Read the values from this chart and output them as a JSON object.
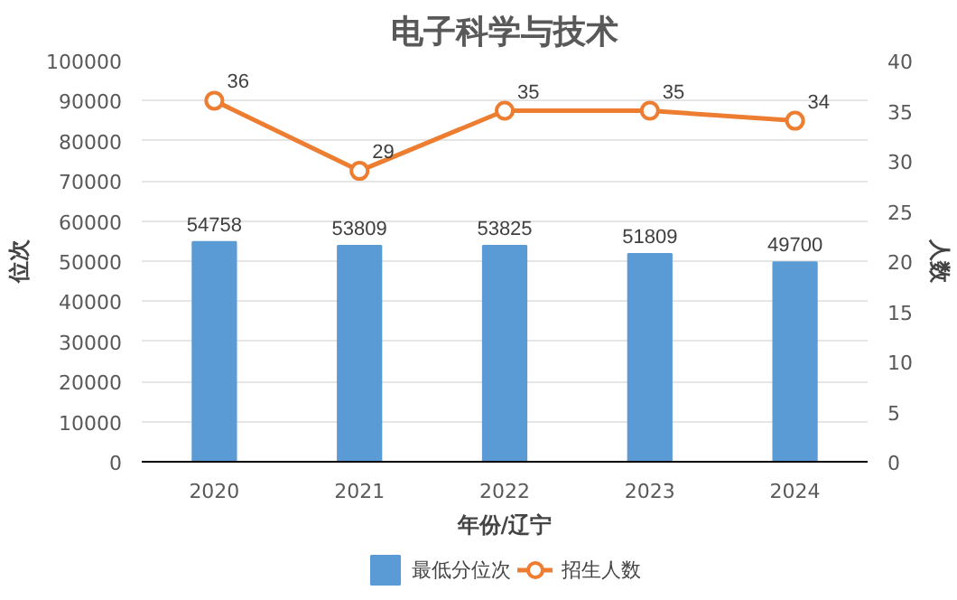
{
  "chart_data": {
    "type": "bar",
    "title": "电子科学与技术",
    "xlabel": "年份/辽宁",
    "ylabel": "位次",
    "y2label": "人数",
    "categories": [
      "2020",
      "2021",
      "2022",
      "2023",
      "2024"
    ],
    "series": [
      {
        "name": "最低分位次",
        "color": "#5b9bd5",
        "values": [
          54758,
          53809,
          53825,
          51809,
          49700
        ]
      },
      {
        "name": "招生人数",
        "type": "line",
        "axis": "y2",
        "color": "#ed7d31",
        "values": [
          36,
          29,
          35,
          35,
          34
        ]
      }
    ],
    "ylim": [
      0,
      100000
    ],
    "yticks": [
      0,
      10000,
      20000,
      30000,
      40000,
      50000,
      60000,
      70000,
      80000,
      90000,
      100000
    ],
    "y2lim": [
      0,
      40
    ],
    "y2ticks": [
      0,
      5,
      10,
      15,
      20,
      25,
      30,
      35,
      40
    ],
    "data_labels": true,
    "grid": "y",
    "legend": "bottom",
    "marker": "circle"
  }
}
